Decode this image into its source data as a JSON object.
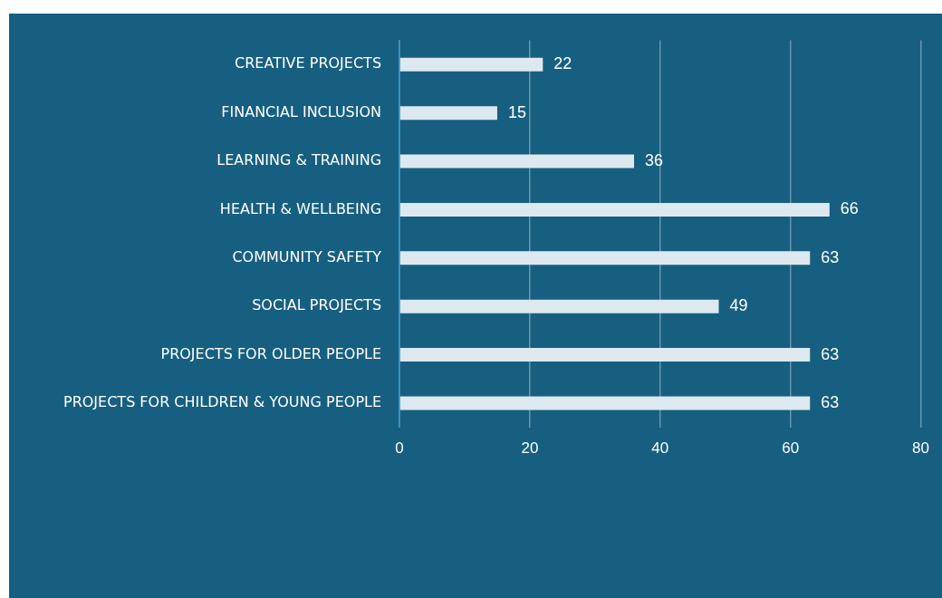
{
  "chart_data": {
    "type": "bar",
    "orientation": "horizontal",
    "categories": [
      "CREATIVE PROJECTS",
      "FINANCIAL INCLUSION",
      "LEARNING & TRAINING",
      "HEALTH & WELLBEING",
      "COMMUNITY SAFETY",
      "SOCIAL PROJECTS",
      "PROJECTS FOR OLDER PEOPLE",
      "PROJECTS FOR CHILDREN & YOUNG PEOPLE"
    ],
    "values": [
      22,
      15,
      36,
      66,
      63,
      49,
      63,
      63
    ],
    "color": "#dde8ef",
    "xlim": [
      0,
      80
    ],
    "xticks": [
      0,
      20,
      40,
      60,
      80
    ],
    "grid": "x",
    "data_labels": true,
    "legend": false
  }
}
